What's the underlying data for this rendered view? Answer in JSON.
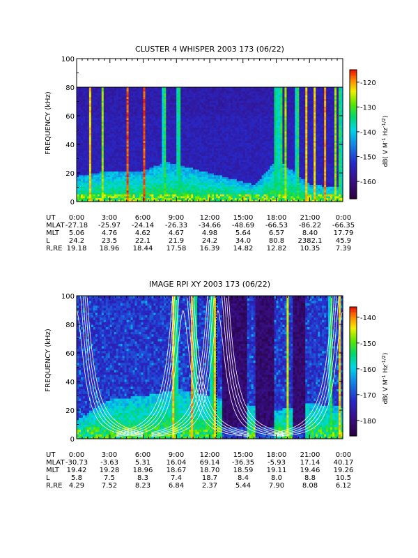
{
  "chart_data": [
    {
      "type": "heatmap",
      "title": "CLUSTER 4 WHISPER 2003 173 (06/22)",
      "ylabel": "FREQUENCY (kHz)",
      "ylim": [
        0,
        100
      ],
      "yticks": [
        0,
        20,
        40,
        60,
        80,
        100
      ],
      "data_ceiling_khz": 80,
      "colorbar": {
        "label": "dB( V M⁻¹ Hz⁻¹/²)",
        "label_base": "dB( V M",
        "label_exp1": "-1",
        "label_mid": " Hz",
        "label_exp2": "-1/2",
        "label_end": ")",
        "min": -167,
        "max": -115,
        "ticks": [
          -120,
          -130,
          -140,
          -150,
          -160
        ]
      },
      "band_profile": [
        {
          "x": 0,
          "lo": 2,
          "hi": 18
        },
        {
          "x": 3,
          "lo": 2,
          "hi": 22
        },
        {
          "x": 6,
          "lo": 2,
          "hi": 22
        },
        {
          "x": 8,
          "lo": 2,
          "hi": 28
        },
        {
          "x": 12,
          "lo": 2,
          "hi": 20
        },
        {
          "x": 16,
          "lo": 2,
          "hi": 12
        },
        {
          "x": 18,
          "lo": 2,
          "hi": 30
        },
        {
          "x": 21,
          "lo": 2,
          "hi": 12
        },
        {
          "x": 24,
          "lo": 2,
          "hi": 10
        }
      ],
      "stripes_x": [
        1.1,
        2.3,
        4.5,
        6.0,
        7.8,
        9.1,
        17.9,
        18.3,
        18.8,
        19.8,
        20.6,
        21.4,
        22.3,
        23.2,
        23.7
      ],
      "ephemeris": {
        "labels": [
          "UT",
          "MLAT",
          "MLT",
          "L",
          "R,RE"
        ],
        "ut": [
          "0:00",
          "3:00",
          "6:00",
          "9:00",
          "12:00",
          "15:00",
          "18:00",
          "21:00",
          "0:00"
        ],
        "mlat": [
          "-27.18",
          "-25.97",
          "-24.14",
          "-26.33",
          "-34.66",
          "-48.69",
          "-66.53",
          "-86.22",
          "-66.35"
        ],
        "mlt": [
          "5.06",
          "4.76",
          "4.62",
          "4.67",
          "4.98",
          "5.64",
          "6.57",
          "8.40",
          "17.79"
        ],
        "l": [
          "24.2",
          "23.5",
          "22.1",
          "21.9",
          "24.2",
          "34.0",
          "80.8",
          "2382.1",
          "45.9"
        ],
        "r": [
          "19.18",
          "18.96",
          "18.44",
          "17.58",
          "16.39",
          "14.82",
          "12.82",
          "10.35",
          "7.39"
        ]
      }
    },
    {
      "type": "heatmap",
      "title": "IMAGE RPI XY 2003 173 (06/22)",
      "ylabel": "FREQUENCY (kHz)",
      "ylim": [
        0,
        100
      ],
      "yticks": [
        0,
        20,
        40,
        60,
        80,
        100
      ],
      "data_ceiling_khz": 100,
      "colorbar": {
        "label": "dB( V M⁻¹ Hz⁻¹/²)",
        "label_base": "dB( V M",
        "label_exp1": "-1",
        "label_mid": " Hz",
        "label_exp2": "-1/2",
        "label_end": ")",
        "min": -186,
        "max": -136,
        "ticks": [
          -140,
          -150,
          -160,
          -170,
          -180
        ]
      },
      "band_profile": [
        {
          "x": 0,
          "lo": 2,
          "hi": 14
        },
        {
          "x": 3,
          "lo": 2,
          "hi": 28
        },
        {
          "x": 6,
          "lo": 2,
          "hi": 30
        },
        {
          "x": 9,
          "lo": 2,
          "hi": 35
        },
        {
          "x": 12,
          "lo": 2,
          "hi": 30
        },
        {
          "x": 15,
          "lo": 2,
          "hi": 25
        },
        {
          "x": 18,
          "lo": 2,
          "hi": 20
        },
        {
          "x": 21,
          "lo": 2,
          "hi": 25
        },
        {
          "x": 24,
          "lo": 2,
          "hi": 22
        }
      ],
      "stripes_x": [
        8.6,
        8.9,
        10.3,
        10.6,
        12.1,
        12.4,
        18.9,
        22.8,
        23.6
      ],
      "dark_regions": [
        [
          13.0,
          15.2
        ],
        [
          16.0,
          17.8
        ],
        [
          19.5,
          20.6
        ]
      ],
      "ephemeris": {
        "labels": [
          "UT",
          "MLAT",
          "MLT",
          "L",
          "R,RE"
        ],
        "ut": [
          "0:00",
          "3:00",
          "6:00",
          "9:00",
          "12:00",
          "15:00",
          "18:00",
          "21:00",
          "0:00"
        ],
        "mlat": [
          "-30.73",
          "-3.63",
          "5.31",
          "16.04",
          "69.14",
          "-36.35",
          "-5.93",
          "17.14",
          "40.17"
        ],
        "mlt": [
          "19.42",
          "19.28",
          "18.96",
          "18.67",
          "18.70",
          "18.59",
          "19.11",
          "19.46",
          "19.26"
        ],
        "l": [
          "5.8",
          "7.5",
          "8.3",
          "7.4",
          "18.7",
          "8.4",
          "8.0",
          "8.8",
          "10.5"
        ],
        "r": [
          "4.29",
          "7.52",
          "8.23",
          "6.84",
          "2.37",
          "5.44",
          "7.90",
          "8.08",
          "6.12"
        ]
      }
    }
  ]
}
